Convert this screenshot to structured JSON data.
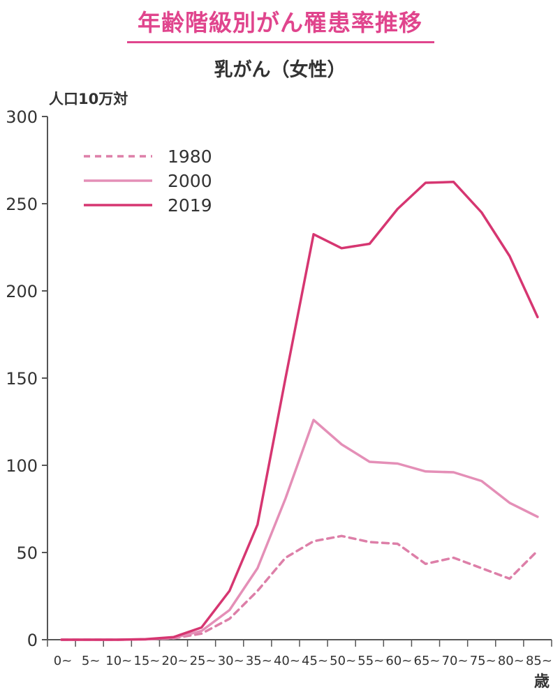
{
  "title": "年齢階級別がん罹患率推移",
  "subtitle": "乳がん（女性）",
  "colors": {
    "accent": "#e0458d",
    "axis": "#555555",
    "text": "#333333"
  },
  "chart_data": {
    "type": "line",
    "ylabel": "人口10万対",
    "xlabel": "歳",
    "ylim": [
      0,
      300
    ],
    "yticks": [
      "0",
      "50",
      "100",
      "150",
      "200",
      "250",
      "300"
    ],
    "categories": [
      "0~",
      "5~",
      "10~",
      "15~",
      "20~",
      "25~",
      "30~",
      "35~",
      "40~",
      "45~",
      "50~",
      "55~",
      "60~",
      "65~",
      "70~",
      "75~",
      "80~",
      "85~"
    ],
    "legend_position": "top-left",
    "series": [
      {
        "name": "1980",
        "style": "dashed",
        "color": "#dd7fa8",
        "values": [
          0,
          0,
          0,
          0.2,
          0.8,
          3.5,
          12,
          28,
          47,
          56.5,
          59.5,
          56,
          55,
          43.5,
          47,
          41,
          35,
          51
        ]
      },
      {
        "name": "2000",
        "style": "solid",
        "color": "#e48fb7",
        "values": [
          0,
          0,
          0,
          0.2,
          1,
          5,
          17,
          41,
          81,
          126,
          112,
          102,
          101,
          96.5,
          96,
          91,
          78.5,
          70.5
        ]
      },
      {
        "name": "2019",
        "style": "solid",
        "color": "#d63671",
        "values": [
          0,
          0,
          0,
          0.3,
          1.5,
          7,
          28,
          66,
          150,
          232.5,
          224.5,
          227,
          247,
          262,
          262.5,
          245,
          220,
          185
        ]
      }
    ]
  }
}
